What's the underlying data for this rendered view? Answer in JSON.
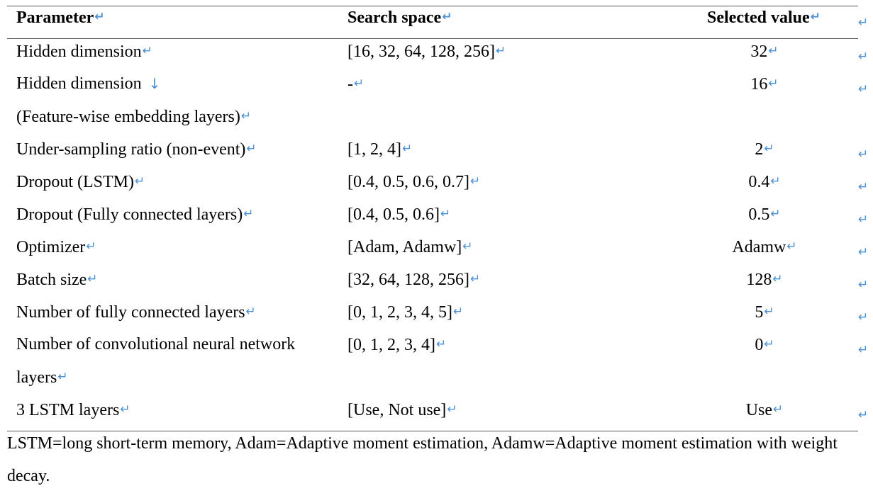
{
  "table": {
    "headers": {
      "parameter": "Parameter",
      "search_space": "Search space",
      "selected_value": "Selected value"
    },
    "rows": [
      {
        "parameter": "Hidden dimension",
        "search_space": "[16, 32, 64, 128, 256]",
        "selected": "32"
      },
      {
        "parameter": "Hidden dimension",
        "parameter_line2": "(Feature-wise embedding layers)",
        "search_space": "-",
        "selected": "16"
      },
      {
        "parameter": "Under-sampling ratio (non-event)",
        "search_space": "[1, 2, 4]",
        "selected": "2"
      },
      {
        "parameter": "Dropout (LSTM)",
        "search_space": "[0.4, 0.5, 0.6, 0.7]",
        "selected": "0.4"
      },
      {
        "parameter": "Dropout (Fully connected layers)",
        "search_space": "[0.4, 0.5, 0.6]",
        "selected": "0.5"
      },
      {
        "parameter": "Optimizer",
        "search_space": "[Adam, Adamw]",
        "selected": "Adamw"
      },
      {
        "parameter": "Batch size",
        "search_space": "[32, 64, 128, 256]",
        "selected": "128"
      },
      {
        "parameter": "Number of fully connected layers",
        "search_space": "[0, 1, 2, 3, 4, 5]",
        "selected": "5"
      },
      {
        "parameter": "Number of convolutional neural network",
        "parameter_line2": "layers",
        "search_space": "[0, 1, 2, 3, 4]",
        "selected": "0"
      },
      {
        "parameter": "3 LSTM layers",
        "search_space": "[Use, Not use]",
        "selected": "Use"
      }
    ]
  },
  "footnote": "LSTM=long short-term memory, Adam=Adaptive moment estimation, Adamw=Adaptive moment estimation with weight decay.",
  "colors": {
    "paragraph_mark": "#4a90d9",
    "rule": "#555555"
  },
  "icons": {
    "paragraph_mark": "return-arrow-icon",
    "line_break_mark": "down-arrow-icon"
  }
}
